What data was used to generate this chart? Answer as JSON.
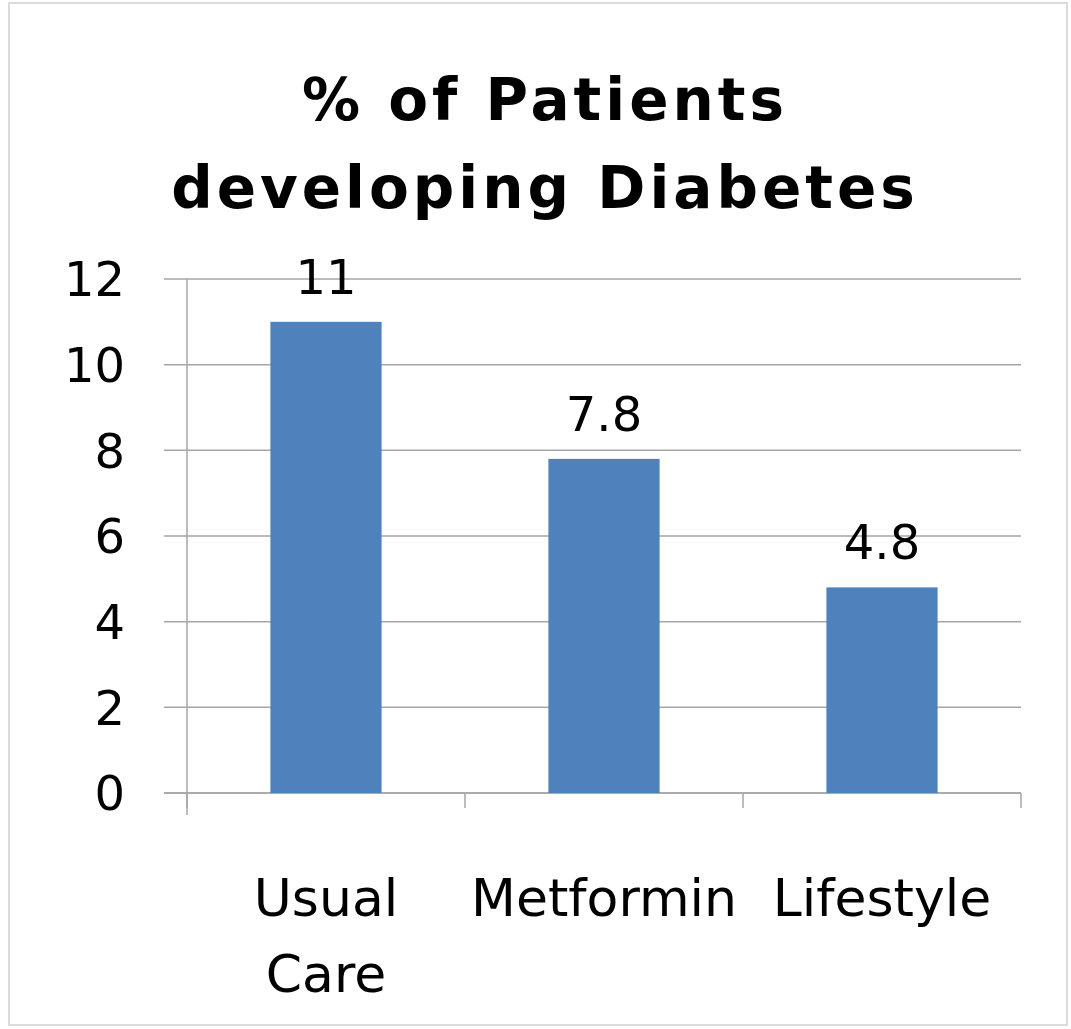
{
  "chart_data": {
    "type": "bar",
    "title": "% of Patients developing Diabetes",
    "categories": [
      "Usual Care",
      "Metformin",
      "Lifestyle"
    ],
    "values": [
      11,
      7.8,
      4.8
    ],
    "color": "#4f81bd",
    "ylim": [
      0,
      12
    ],
    "yticks": [
      0,
      2,
      4,
      6,
      8,
      10,
      12
    ],
    "grid": "y",
    "data_labels": true
  }
}
